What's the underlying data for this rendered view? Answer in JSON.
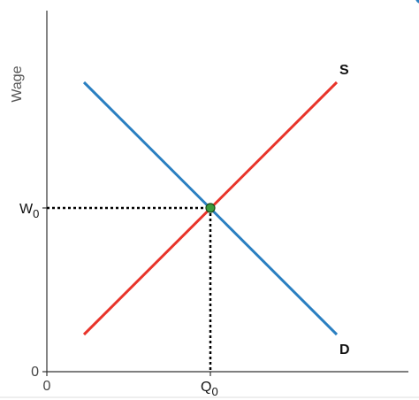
{
  "axes": {
    "y_label": "Wage",
    "y_origin": "0",
    "x_origin": "0"
  },
  "curves": {
    "supply": "S",
    "demand": "D"
  },
  "equilibrium": {
    "wage": {
      "main": "W",
      "sub": "0"
    },
    "quantity": {
      "main": "Q",
      "sub": "0"
    }
  }
}
